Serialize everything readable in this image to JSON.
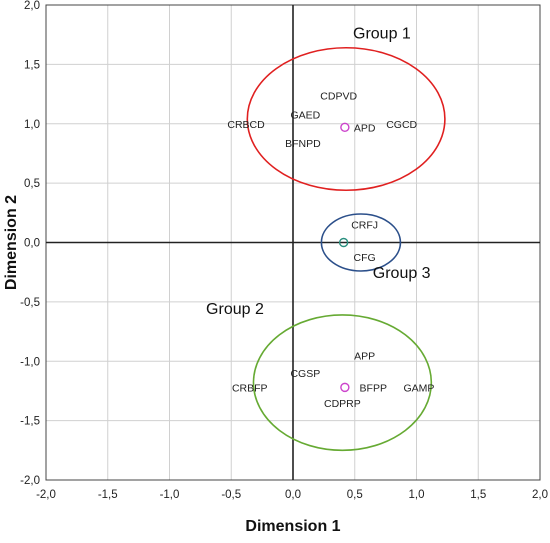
{
  "chart_data": {
    "type": "scatter",
    "title": "",
    "xlabel": "Dimension 1",
    "ylabel": "Dimension 2",
    "xlim": [
      -2.0,
      2.0
    ],
    "ylim": [
      -2.0,
      2.0
    ],
    "grid": true,
    "x_ticks": [
      "-2,0",
      "-1,5",
      "-1,0",
      "-0,5",
      "0,0",
      "0,5",
      "1,0",
      "1,5",
      "2,0"
    ],
    "y_ticks": [
      "-2,0",
      "-1,5",
      "-1,0",
      "-0,5",
      "0,0",
      "0,5",
      "1,0",
      "1,5",
      "2,0"
    ],
    "series": [
      {
        "color": "#cc44cc",
        "points": [
          {
            "x": 0.42,
            "y": 0.97
          },
          {
            "x": 0.42,
            "y": -1.22
          }
        ]
      },
      {
        "color": "#2a8f7f",
        "points": [
          {
            "x": 0.41,
            "y": 0.0
          }
        ]
      }
    ],
    "annotations": [
      {
        "text": "CDPVD",
        "x": 0.37,
        "y": 1.24
      },
      {
        "text": "GAED",
        "x": 0.1,
        "y": 1.08
      },
      {
        "text": "CRBCD",
        "x": -0.38,
        "y": 1.0
      },
      {
        "text": "APD",
        "x": 0.58,
        "y": 0.97
      },
      {
        "text": "CGCD",
        "x": 0.88,
        "y": 1.0
      },
      {
        "text": "BFNPD",
        "x": 0.08,
        "y": 0.84
      },
      {
        "text": "CRFJ",
        "x": 0.58,
        "y": 0.15
      },
      {
        "text": "CFG",
        "x": 0.58,
        "y": -0.12
      },
      {
        "text": "APP",
        "x": 0.58,
        "y": -0.95
      },
      {
        "text": "CGSP",
        "x": 0.1,
        "y": -1.1
      },
      {
        "text": "CRBFP",
        "x": -0.35,
        "y": -1.22
      },
      {
        "text": "BFPP",
        "x": 0.65,
        "y": -1.22
      },
      {
        "text": "GAMP",
        "x": 1.02,
        "y": -1.22
      },
      {
        "text": "CDPRP",
        "x": 0.4,
        "y": -1.35
      }
    ],
    "groups": [
      {
        "label": "Group 1",
        "label_x": 0.72,
        "label_y": 1.72,
        "cx": 0.43,
        "cy": 1.04,
        "rx": 0.8,
        "ry": 0.6,
        "color": "#e02020"
      },
      {
        "label": "Group 2",
        "label_x": -0.47,
        "label_y": -0.6,
        "cx": 0.4,
        "cy": -1.18,
        "rx": 0.72,
        "ry": 0.57,
        "color": "#66aa33"
      },
      {
        "label": "Group 3",
        "label_x": 0.88,
        "label_y": -0.3,
        "cx": 0.55,
        "cy": 0.0,
        "rx": 0.32,
        "ry": 0.24,
        "color": "#2b4f8a"
      }
    ]
  }
}
